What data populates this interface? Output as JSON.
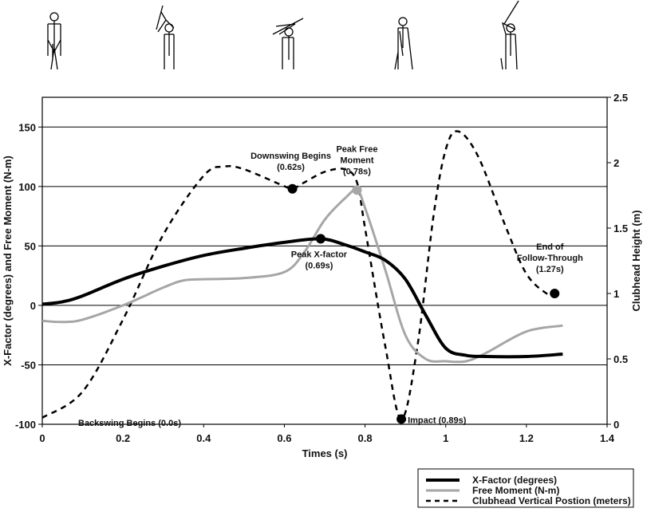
{
  "chart_data": {
    "type": "line",
    "xlabel": "Times (s)",
    "ylabel": "X-Factor (degrees) and Free Moment (N-m)",
    "y2label": "Clubhead Height (m)",
    "xlim": [
      0,
      1.4
    ],
    "ylim": [
      -100,
      175
    ],
    "y2lim": [
      0,
      2.5
    ],
    "xticks": [
      "0",
      "0.2",
      "0.4",
      "0.6",
      "0.8",
      "1",
      "1.2",
      "1.4"
    ],
    "yticks": [
      "-100",
      "-50",
      "0",
      "50",
      "100",
      "150"
    ],
    "y2ticks": [
      "0",
      "0.5",
      "1",
      "1.5",
      "2",
      "2.5"
    ],
    "grid": "horizontal",
    "legend_position": "bottom-right",
    "series": [
      {
        "name": "X-Factor (degrees)",
        "axis": "left",
        "style": "solid-black",
        "color": "#000000",
        "x": [
          0,
          0.05,
          0.1,
          0.2,
          0.3,
          0.4,
          0.5,
          0.6,
          0.69,
          0.75,
          0.8,
          0.85,
          0.9,
          0.95,
          1.0,
          1.05,
          1.1,
          1.2,
          1.29
        ],
        "y": [
          1,
          3,
          8,
          22,
          33,
          42,
          48,
          53,
          56,
          51,
          45,
          38,
          22,
          -8,
          -36,
          -42,
          -43,
          -43,
          -41
        ]
      },
      {
        "name": "Free Moment (N-m)",
        "axis": "left",
        "style": "solid-gray",
        "color": "#a6a6a6",
        "x": [
          0,
          0.05,
          0.1,
          0.2,
          0.3,
          0.35,
          0.4,
          0.5,
          0.6,
          0.65,
          0.7,
          0.75,
          0.78,
          0.8,
          0.85,
          0.9,
          0.95,
          1.0,
          1.05,
          1.1,
          1.2,
          1.29
        ],
        "y": [
          -13,
          -14,
          -12,
          0,
          15,
          21,
          22,
          23,
          28,
          45,
          72,
          90,
          97,
          82,
          30,
          -25,
          -45,
          -47,
          -47,
          -40,
          -22,
          -17
        ]
      },
      {
        "name": "Clubhead Vertical Postion (meters)",
        "axis": "right",
        "style": "dashed-black",
        "color": "#000000",
        "x": [
          0,
          0.1,
          0.2,
          0.3,
          0.4,
          0.45,
          0.5,
          0.6,
          0.62,
          0.65,
          0.7,
          0.75,
          0.78,
          0.8,
          0.85,
          0.89,
          0.93,
          0.97,
          1.0,
          1.03,
          1.08,
          1.15,
          1.2,
          1.25,
          1.27
        ],
        "y": [
          0.05,
          0.25,
          0.8,
          1.45,
          1.9,
          1.97,
          1.95,
          1.82,
          1.8,
          1.85,
          1.93,
          1.95,
          1.85,
          1.5,
          0.6,
          0.04,
          0.6,
          1.6,
          2.1,
          2.24,
          2.05,
          1.5,
          1.15,
          1.0,
          1.0
        ]
      }
    ],
    "annotations": [
      {
        "lines": [
          "Backswing Begins (0.0s)"
        ],
        "x": 0,
        "axis": "right",
        "y": 0.05,
        "marker": false
      },
      {
        "lines": [
          "Downswing Begins",
          "(0.62s)"
        ],
        "x": 0.62,
        "axis": "right",
        "y": 1.8,
        "marker": "black"
      },
      {
        "lines": [
          "Peak Free",
          "Moment",
          "(0.78s)"
        ],
        "x": 0.78,
        "axis": "left",
        "y": 97,
        "marker": "gray"
      },
      {
        "lines": [
          "Peak X-factor",
          "(0.69s)"
        ],
        "x": 0.69,
        "axis": "left",
        "y": 56,
        "marker": "black"
      },
      {
        "lines": [
          "Impact (0.89s)"
        ],
        "x": 0.89,
        "axis": "right",
        "y": 0.04,
        "marker": "black"
      },
      {
        "lines": [
          "End of",
          "Follow-Through",
          "(1.27s)"
        ],
        "x": 1.27,
        "axis": "right",
        "y": 1.0,
        "marker": "black"
      }
    ]
  }
}
